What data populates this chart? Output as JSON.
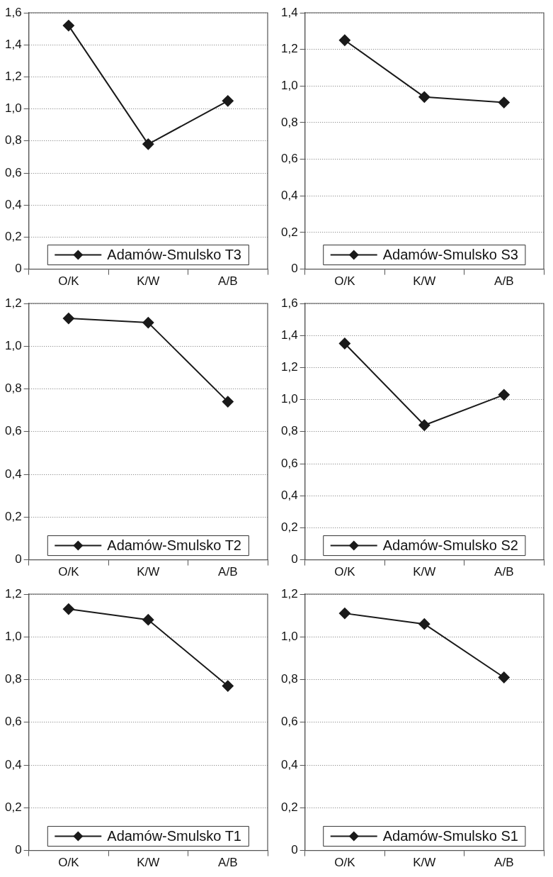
{
  "chart_data": [
    {
      "type": "line",
      "categories": [
        "O/K",
        "K/W",
        "A/B"
      ],
      "series": [
        {
          "name": "Adamów-Smulsko T3",
          "color": "#1a1a1a",
          "values": [
            1.52,
            0.78,
            1.05
          ]
        }
      ],
      "ylim": [
        0,
        1.6
      ],
      "yticks": [
        {
          "value": 0,
          "label": "0"
        },
        {
          "value": 0.2,
          "label": "0,2"
        },
        {
          "value": 0.4,
          "label": "0,4"
        },
        {
          "value": 0.6,
          "label": "0,6"
        },
        {
          "value": 0.8,
          "label": "0,8"
        },
        {
          "value": 1,
          "label": "1,0"
        },
        {
          "value": 1.2,
          "label": "1,2"
        },
        {
          "value": 1.4,
          "label": "1,4"
        },
        {
          "value": 1.6,
          "label": "1,6"
        }
      ],
      "grid": "y",
      "legend": "bottom",
      "marker": "diamond",
      "line_style": "solid"
    },
    {
      "type": "line",
      "categories": [
        "O/K",
        "K/W",
        "A/B"
      ],
      "series": [
        {
          "name": "Adamów-Smulsko S3",
          "color": "#1a1a1a",
          "values": [
            1.25,
            0.94,
            0.91
          ]
        }
      ],
      "ylim": [
        0,
        1.4
      ],
      "yticks": [
        {
          "value": 0,
          "label": "0"
        },
        {
          "value": 0.2,
          "label": "0,2"
        },
        {
          "value": 0.4,
          "label": "0,4"
        },
        {
          "value": 0.6,
          "label": "0,6"
        },
        {
          "value": 0.8,
          "label": "0,8"
        },
        {
          "value": 1,
          "label": "1,0"
        },
        {
          "value": 1.2,
          "label": "1,2"
        },
        {
          "value": 1.4,
          "label": "1,4"
        }
      ],
      "grid": "y",
      "legend": "bottom",
      "marker": "diamond",
      "line_style": "solid"
    },
    {
      "type": "line",
      "categories": [
        "O/K",
        "K/W",
        "A/B"
      ],
      "series": [
        {
          "name": "Adamów-Smulsko T2",
          "color": "#1a1a1a",
          "values": [
            1.13,
            1.11,
            0.74
          ]
        }
      ],
      "ylim": [
        0,
        1.2
      ],
      "yticks": [
        {
          "value": 0,
          "label": "0"
        },
        {
          "value": 0.2,
          "label": "0,2"
        },
        {
          "value": 0.4,
          "label": "0,4"
        },
        {
          "value": 0.6,
          "label": "0,6"
        },
        {
          "value": 0.8,
          "label": "0,8"
        },
        {
          "value": 1,
          "label": "1,0"
        },
        {
          "value": 1.2,
          "label": "1,2"
        }
      ],
      "grid": "y",
      "legend": "bottom",
      "marker": "diamond",
      "line_style": "solid"
    },
    {
      "type": "line",
      "categories": [
        "O/K",
        "K/W",
        "A/B"
      ],
      "series": [
        {
          "name": "Adamów-Smulsko S2",
          "color": "#1a1a1a",
          "values": [
            1.35,
            0.84,
            1.03
          ]
        }
      ],
      "ylim": [
        0,
        1.6
      ],
      "yticks": [
        {
          "value": 0,
          "label": "0"
        },
        {
          "value": 0.2,
          "label": "0,2"
        },
        {
          "value": 0.4,
          "label": "0,4"
        },
        {
          "value": 0.6,
          "label": "0,6"
        },
        {
          "value": 0.8,
          "label": "0,8"
        },
        {
          "value": 1,
          "label": "1,0"
        },
        {
          "value": 1.2,
          "label": "1,2"
        },
        {
          "value": 1.4,
          "label": "1,4"
        },
        {
          "value": 1.6,
          "label": "1,6"
        }
      ],
      "grid": "y",
      "legend": "bottom",
      "marker": "diamond",
      "line_style": "solid"
    },
    {
      "type": "line",
      "categories": [
        "O/K",
        "K/W",
        "A/B"
      ],
      "series": [
        {
          "name": "Adamów-Smulsko T1",
          "color": "#1a1a1a",
          "values": [
            1.13,
            1.08,
            0.77
          ]
        }
      ],
      "ylim": [
        0,
        1.2
      ],
      "yticks": [
        {
          "value": 0,
          "label": "0"
        },
        {
          "value": 0.2,
          "label": "0,2"
        },
        {
          "value": 0.4,
          "label": "0,4"
        },
        {
          "value": 0.6,
          "label": "0,6"
        },
        {
          "value": 0.8,
          "label": "0,8"
        },
        {
          "value": 1,
          "label": "1,0"
        },
        {
          "value": 1.2,
          "label": "1,2"
        }
      ],
      "grid": "y",
      "legend": "bottom",
      "marker": "diamond",
      "line_style": "solid"
    },
    {
      "type": "line",
      "categories": [
        "O/K",
        "K/W",
        "A/B"
      ],
      "series": [
        {
          "name": "Adamów-Smulsko S1",
          "color": "#1a1a1a",
          "values": [
            1.11,
            1.06,
            0.81
          ]
        }
      ],
      "ylim": [
        0,
        1.2
      ],
      "yticks": [
        {
          "value": 0,
          "label": "0"
        },
        {
          "value": 0.2,
          "label": "0,2"
        },
        {
          "value": 0.4,
          "label": "0,4"
        },
        {
          "value": 0.6,
          "label": "0,6"
        },
        {
          "value": 0.8,
          "label": "0,8"
        },
        {
          "value": 1,
          "label": "1,0"
        },
        {
          "value": 1.2,
          "label": "1,2"
        }
      ],
      "grid": "y",
      "legend": "bottom",
      "marker": "diamond",
      "line_style": "solid"
    }
  ]
}
